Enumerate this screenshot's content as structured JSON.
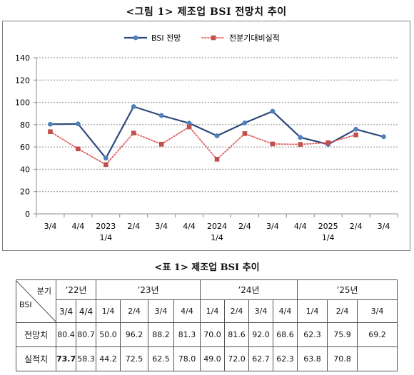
{
  "figure_title": "<그림 1> 제조업 BSI 전망치 추이",
  "table_title": "<표 1> 제조업 BSI 추이",
  "chart_data": {
    "type": "line",
    "legend_position": "top-center",
    "categories": [
      [
        "3/4"
      ],
      [
        "4/4"
      ],
      [
        "2023",
        "1/4"
      ],
      [
        "2/4"
      ],
      [
        "3/4"
      ],
      [
        "4/4"
      ],
      [
        "2024",
        "1/4"
      ],
      [
        "2/4"
      ],
      [
        "3/4"
      ],
      [
        "4/4"
      ],
      [
        "2025",
        "1/4"
      ],
      [
        "2/4"
      ],
      [
        "3/4"
      ]
    ],
    "ylim": [
      0,
      140
    ],
    "yticks": [
      0,
      20,
      40,
      60,
      80,
      100,
      120,
      140
    ],
    "grid": true,
    "series": [
      {
        "name": "BSI 전망",
        "color": "#2E4A7D",
        "marker_color": "#4F81BD",
        "style": "solid",
        "marker": "circle",
        "values": [
          80.4,
          80.7,
          50.0,
          96.2,
          88.2,
          81.3,
          70.0,
          81.6,
          92.0,
          68.6,
          62.3,
          75.9,
          69.2
        ]
      },
      {
        "name": "전분기대비실적",
        "color": "#E05A5A",
        "marker_color": "#C0504D",
        "style": "dotted",
        "marker": "square",
        "values": [
          73.7,
          58.3,
          44.2,
          72.5,
          62.5,
          78.0,
          49.0,
          72.0,
          62.7,
          62.3,
          63.8,
          70.8,
          null
        ]
      }
    ]
  },
  "table": {
    "corner_top": "분기",
    "corner_bottom": "BSI",
    "years": [
      "’22년",
      "’23년",
      "’24년",
      "’25년"
    ],
    "quarters": [
      "3/4",
      "4/4",
      "1/4",
      "2/4",
      "3/4",
      "4/4",
      "1/4",
      "2/4",
      "3/4",
      "4/4",
      "1/4",
      "2/4",
      "3/4"
    ],
    "rows": [
      {
        "label": "전망치",
        "values": [
          "80.4",
          "80.7",
          "50.0",
          "96.2",
          "88.2",
          "81.3",
          "70.0",
          "81.6",
          "92.0",
          "68.6",
          "62.3",
          "75.9",
          "69.2"
        ]
      },
      {
        "label": "실적치",
        "values": [
          "73.7",
          "58.3",
          "44.2",
          "72.5",
          "62.5",
          "78.0",
          "49.0",
          "72.0",
          "62.7",
          "62.3",
          "63.8",
          "70.8",
          ""
        ]
      }
    ]
  }
}
